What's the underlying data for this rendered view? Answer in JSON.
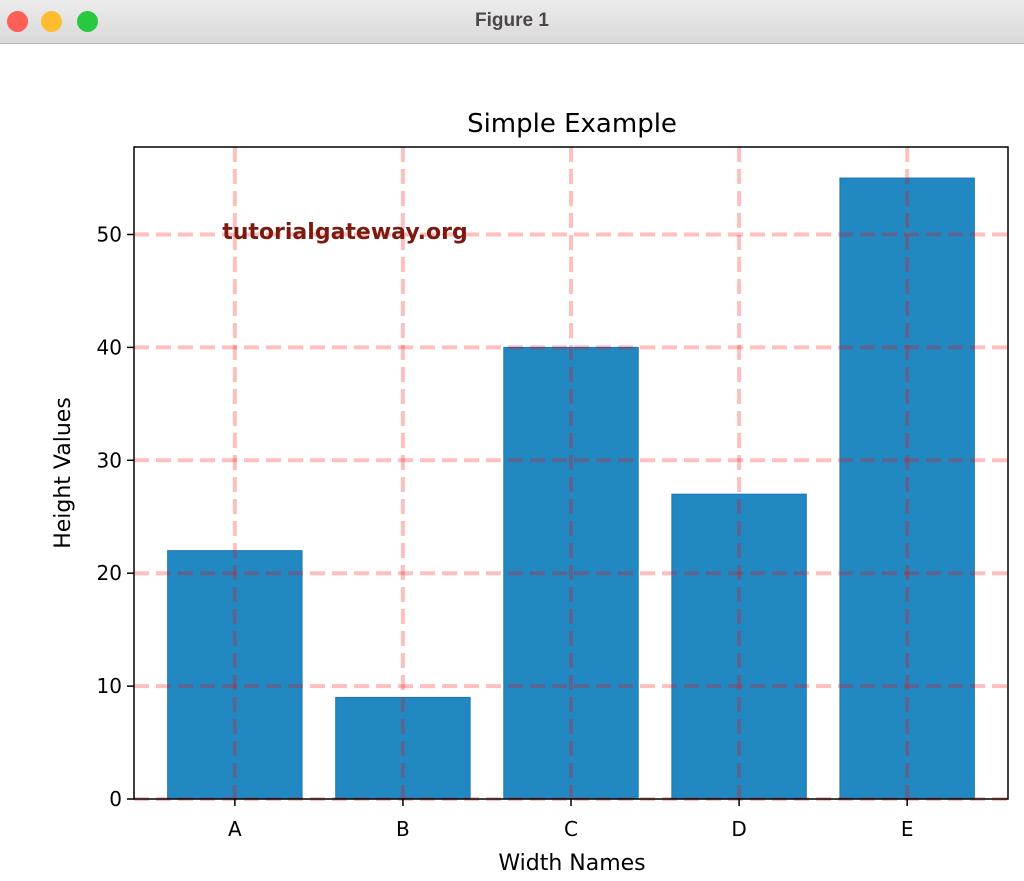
{
  "window": {
    "title": "Figure 1",
    "controls": [
      "close",
      "minimize",
      "maximize"
    ]
  },
  "colors": {
    "bar": "#2288c2",
    "bar_edge": "#1f77b4",
    "grid": "#ffb3b3",
    "watermark": "#7a1a10",
    "traffic_close": "#fe5f57",
    "traffic_min": "#febc2e",
    "traffic_max": "#28c840"
  },
  "watermark": "tutorialgateway.org",
  "chart_data": {
    "type": "bar",
    "title": "Simple Example",
    "xlabel": "Width Names",
    "ylabel": "Height Values",
    "categories": [
      "A",
      "B",
      "C",
      "D",
      "E"
    ],
    "values": [
      22,
      9,
      40,
      27,
      55
    ],
    "ylim": [
      0,
      57.75
    ],
    "yticks": [
      0,
      10,
      20,
      30,
      40,
      50
    ],
    "grid": {
      "on": true,
      "color": "red",
      "linestyle": "dashed",
      "alpha": 0.25,
      "linewidth": 3
    },
    "legend": null
  }
}
